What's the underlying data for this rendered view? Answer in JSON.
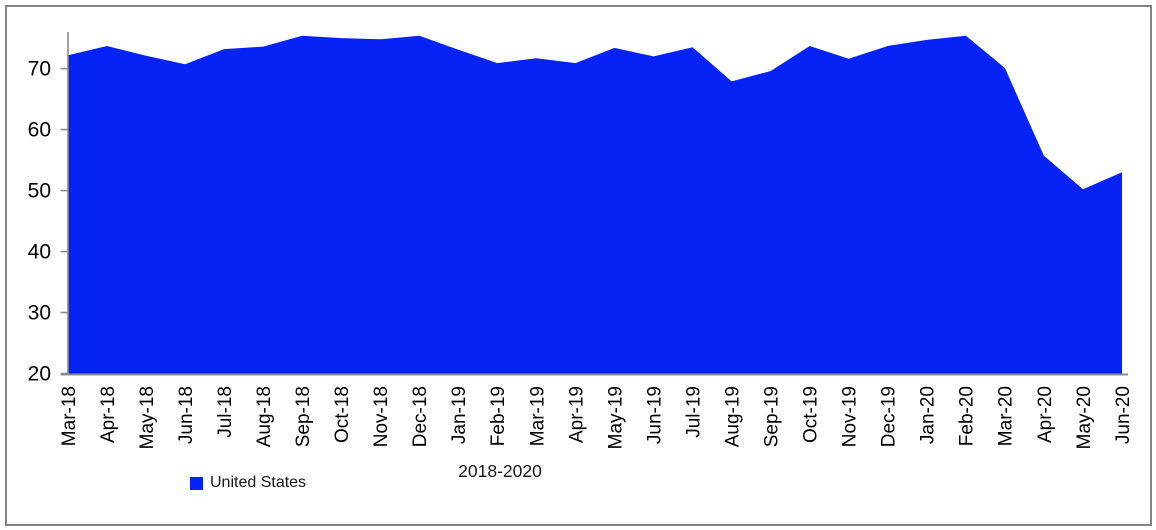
{
  "window": {
    "background": "#ffffff",
    "frame_border_color": "#838383"
  },
  "chart_data": {
    "type": "area",
    "title": "",
    "xlabel": "2018-2020",
    "ylabel": "",
    "categories": [
      "Mar-18",
      "Apr-18",
      "May-18",
      "Jun-18",
      "Jul-18",
      "Aug-18",
      "Sep-18",
      "Oct-18",
      "Nov-18",
      "Dec-18",
      "Jan-19",
      "Feb-19",
      "Mar-19",
      "Apr-19",
      "May-19",
      "Jun-19",
      "Jul-19",
      "Aug-19",
      "Sep-19",
      "Oct-19",
      "Nov-19",
      "Dec-19",
      "Jan-20",
      "Feb-20",
      "Mar-20",
      "Apr-20",
      "May-20",
      "Jun-20"
    ],
    "series": [
      {
        "name": "United States",
        "color": "#0623F5",
        "values": [
          72.2,
          73.7,
          72.1,
          70.7,
          73.2,
          73.6,
          75.4,
          75.0,
          74.8,
          75.4,
          73.1,
          70.9,
          71.7,
          70.9,
          73.4,
          72.0,
          73.5,
          67.9,
          69.6,
          73.7,
          71.6,
          73.7,
          74.7,
          75.4,
          70.1,
          55.7,
          50.2,
          53.0
        ]
      }
    ],
    "ylim": [
      20,
      76
    ],
    "yticks": [
      20,
      30,
      40,
      50,
      60,
      70
    ],
    "grid": false,
    "legend_position": "bottom-left",
    "axis_color": "#8C8C8C",
    "tick_label_color": "#000000"
  }
}
